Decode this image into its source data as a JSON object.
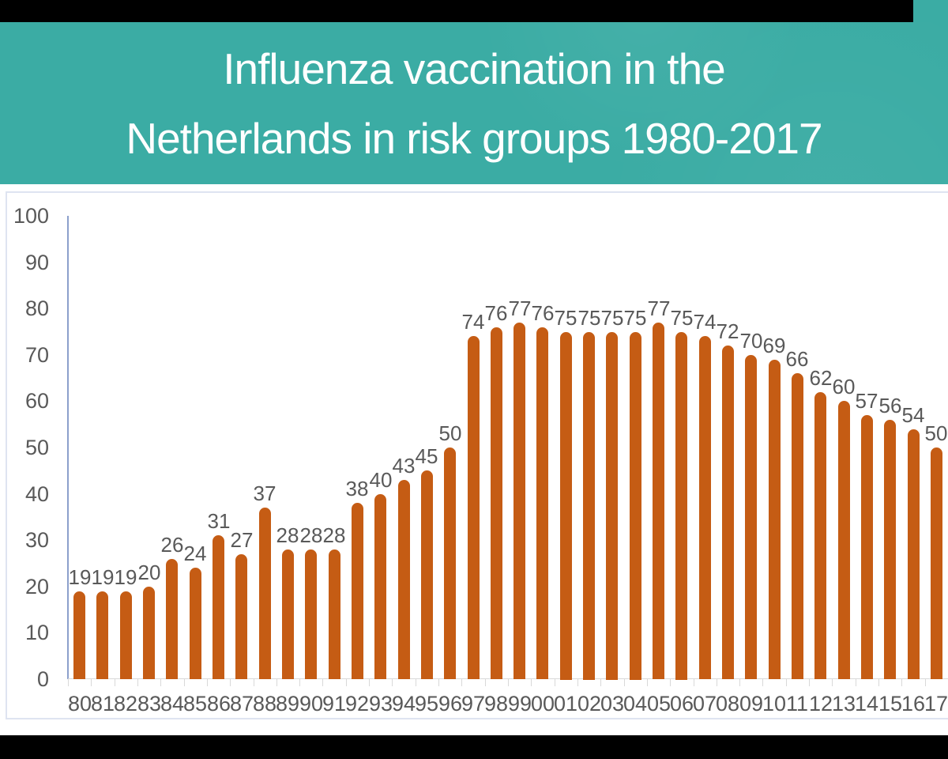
{
  "header": {
    "title_line1": "Influenza vaccination in the",
    "title_line2": "Netherlands in risk groups 1980-2017"
  },
  "colors": {
    "banner_teal": "#3BACA4",
    "bar_orange": "#C55C14",
    "label_gray": "#595959",
    "y_axis_line_blue": "#8CA0CC",
    "tick_gray": "#D9D9D9",
    "panel_border": "#DEE4F1",
    "letterbox_black": "#000000",
    "background": "#FFFFFF"
  },
  "chart_data": {
    "type": "bar",
    "title": "Influenza vaccination in the Netherlands in risk groups 1980-2017",
    "categories": [
      "80",
      "81",
      "82",
      "83",
      "84",
      "85",
      "86",
      "87",
      "88",
      "89",
      "90",
      "91",
      "92",
      "93",
      "94",
      "95",
      "96",
      "97",
      "98",
      "99",
      "00",
      "01",
      "02",
      "03",
      "04",
      "05",
      "06",
      "07",
      "08",
      "09",
      "10",
      "11",
      "12",
      "13",
      "14",
      "15",
      "16",
      "17"
    ],
    "values": [
      19,
      19,
      19,
      20,
      26,
      24,
      31,
      27,
      37,
      28,
      28,
      28,
      38,
      40,
      43,
      45,
      50,
      74,
      76,
      77,
      76,
      75,
      75,
      75,
      75,
      77,
      75,
      74,
      72,
      70,
      69,
      66,
      62,
      60,
      57,
      56,
      54,
      50
    ],
    "xlabel": "",
    "ylabel": "",
    "ylim": [
      0,
      100
    ],
    "yticks": [
      0,
      10,
      20,
      30,
      40,
      50,
      60,
      70,
      80,
      90,
      100
    ],
    "grid": false,
    "legend": "none",
    "data_labels": true,
    "bar_color": "#C55C14"
  }
}
